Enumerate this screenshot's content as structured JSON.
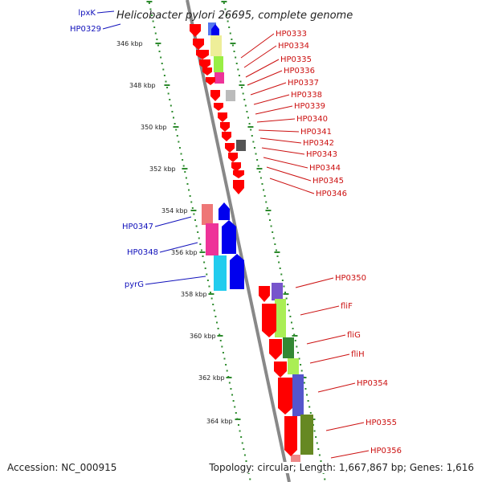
{
  "map": {
    "title": "Helicobacter pylori 26695, complete genome",
    "accession": "Accession: NC_000915",
    "summary": "Topology: circular; Length: 1,667,867 bp; Genes: 1,616"
  },
  "colors": {
    "backbone": "#888888",
    "tick": "#2e8b2e",
    "forward_label": "#cc1111",
    "reverse_label": "#1111bb",
    "gene_red": "#ff0000",
    "gene_blue": "#0000ee"
  },
  "scale": {
    "unit": "kbp",
    "ticks": [
      "346 kbp",
      "348 kbp",
      "350 kbp",
      "352 kbp",
      "354 kbp",
      "356 kbp",
      "358 kbp",
      "360 kbp",
      "362 kbp",
      "364 kbp"
    ]
  },
  "genes": {
    "forward": [
      "HP0333",
      "HP0334",
      "HP0335",
      "HP0336",
      "HP0337",
      "HP0338",
      "HP0339",
      "HP0340",
      "HP0341",
      "HP0342",
      "HP0343",
      "HP0344",
      "HP0345",
      "HP0346",
      "HP0350",
      "fliF",
      "fliG",
      "fliH",
      "HP0354",
      "HP0355",
      "HP0356"
    ],
    "reverse": [
      "lpxK",
      "HP0329",
      "HP0347",
      "HP0348",
      "pyrG"
    ]
  }
}
